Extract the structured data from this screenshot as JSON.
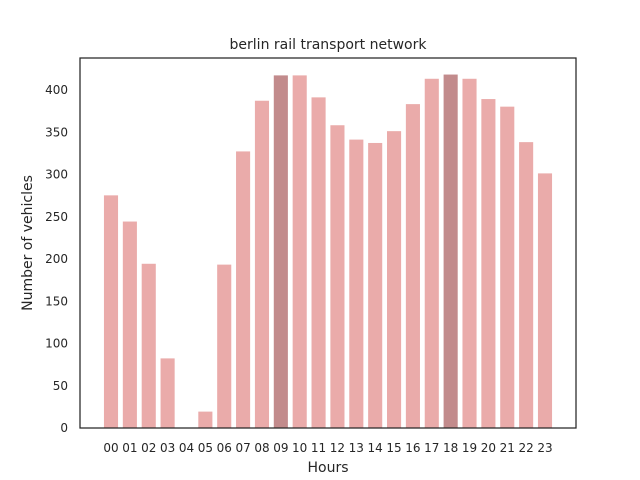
{
  "chart_data": {
    "type": "bar",
    "title": "berlin rail transport network",
    "xlabel": "Hours",
    "ylabel": "Number of vehicles",
    "categories": [
      "00",
      "01",
      "02",
      "03",
      "04",
      "05",
      "06",
      "07",
      "08",
      "09",
      "10",
      "11",
      "12",
      "13",
      "14",
      "15",
      "16",
      "17",
      "18",
      "19",
      "20",
      "21",
      "22",
      "23"
    ],
    "values": [
      276,
      245,
      195,
      83,
      0,
      20,
      194,
      328,
      388,
      418,
      418,
      392,
      359,
      342,
      338,
      352,
      384,
      414,
      419,
      414,
      390,
      381,
      339,
      302
    ],
    "highlight": [
      "09",
      "18"
    ],
    "ylim": [
      0,
      438
    ],
    "yticks": [
      0,
      50,
      100,
      150,
      200,
      250,
      300,
      350,
      400
    ],
    "grid": false,
    "colors": {
      "bar": "#eaabaa",
      "highlight": "#c28b8c",
      "axis": "#262626"
    }
  }
}
